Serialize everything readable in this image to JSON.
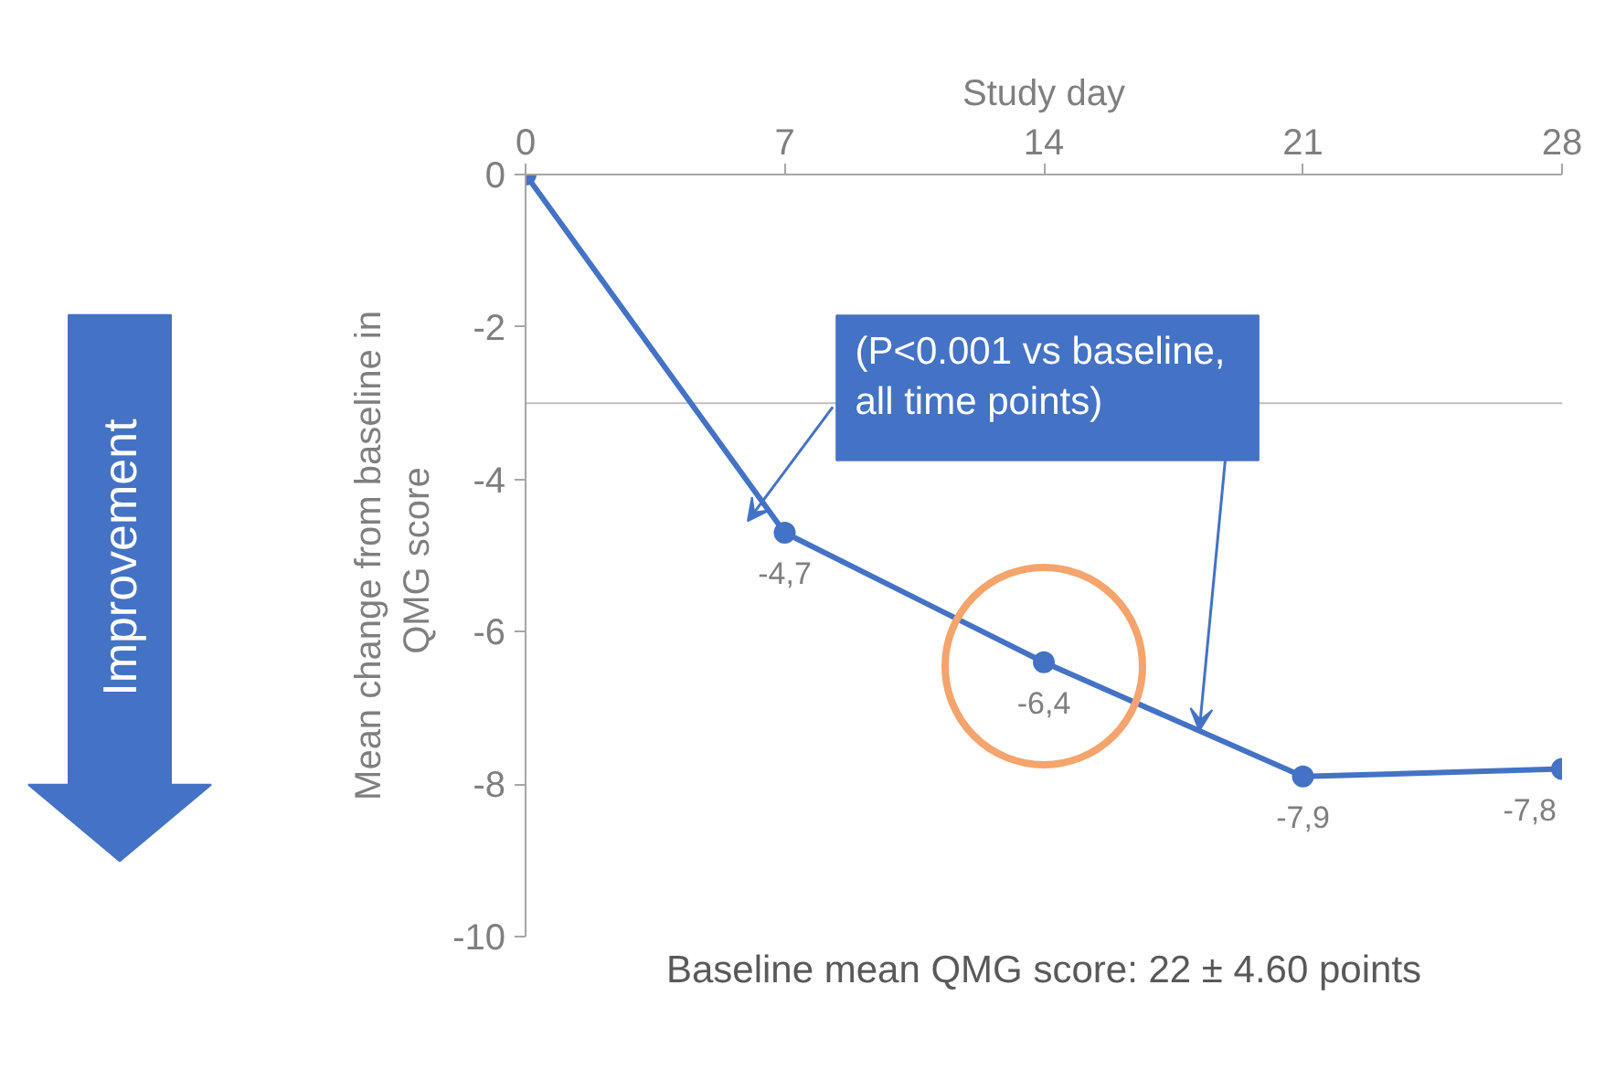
{
  "chart_data": {
    "type": "line",
    "xlabel": "Study day",
    "ylabel": "Mean change from baseline in\nQMG  score",
    "x": [
      0,
      7,
      14,
      21,
      28
    ],
    "series": [
      {
        "color": "#4472c4",
        "values": [
          0,
          -4.7,
          -6.4,
          -7.9,
          -7.8
        ],
        "value_labels": [
          null,
          "-4,7",
          "-6,4",
          "-7,9",
          "-7,8"
        ]
      }
    ],
    "xlim": [
      0,
      28
    ],
    "xticks": [
      0,
      7,
      14,
      21,
      28
    ],
    "ylim": [
      -10,
      0
    ],
    "yticks": [
      0,
      -2,
      -4,
      -6,
      -8,
      -10
    ],
    "marker": "circle",
    "line_style": "solid",
    "grid": false,
    "ref_lines": [
      {
        "axis": "y",
        "value": -3,
        "color": "#bfbfbf"
      }
    ],
    "annotations": [
      "Improvement",
      "(P<0.001 vs baseline,\n           all time points)",
      "Baseline mean QMG score: 22 ± 4.60 points"
    ]
  }
}
